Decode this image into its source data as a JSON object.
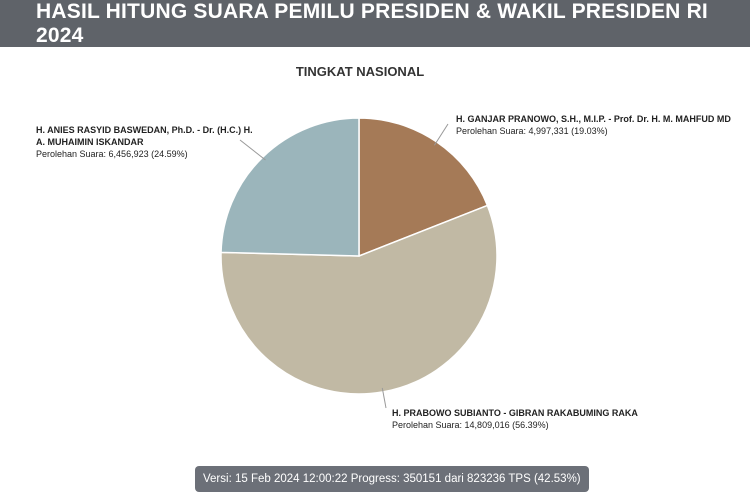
{
  "header": {
    "title": "HASIL HITUNG SUARA PEMILU PRESIDEN & WAKIL PRESIDEN RI 2024"
  },
  "chart_data": {
    "type": "pie",
    "title": "TINGKAT NASIONAL",
    "slices": [
      {
        "name": "H. GANJAR PRANOWO, S.H., M.I.P. - Prof. Dr. H. M. MAHFUD MD",
        "name_line2": "",
        "votes_label": "Perolehan Suara: 4,997,331 (19.03%)",
        "value": 4997331,
        "percent": 19.03,
        "color": "#a57a57"
      },
      {
        "name": "H. PRABOWO SUBIANTO - GIBRAN RAKABUMING RAKA",
        "name_line2": "",
        "votes_label": "Perolehan Suara: 14,809,016 (56.39%)",
        "value": 14809016,
        "percent": 56.39,
        "color": "#c1b9a4"
      },
      {
        "name": "H. ANIES RASYID BASWEDAN, Ph.D. - Dr. (H.C.) H.",
        "name_line2": "A. MUHAIMIN ISKANDAR",
        "votes_label": "Perolehan Suara: 6,456,923 (24.59%)",
        "value": 6456923,
        "percent": 24.59,
        "color": "#9bb5bb"
      }
    ]
  },
  "footer": {
    "status": "Versi: 15 Feb 2024 12:00:22 Progress: 350151 dari 823236 TPS (42.53%)"
  }
}
